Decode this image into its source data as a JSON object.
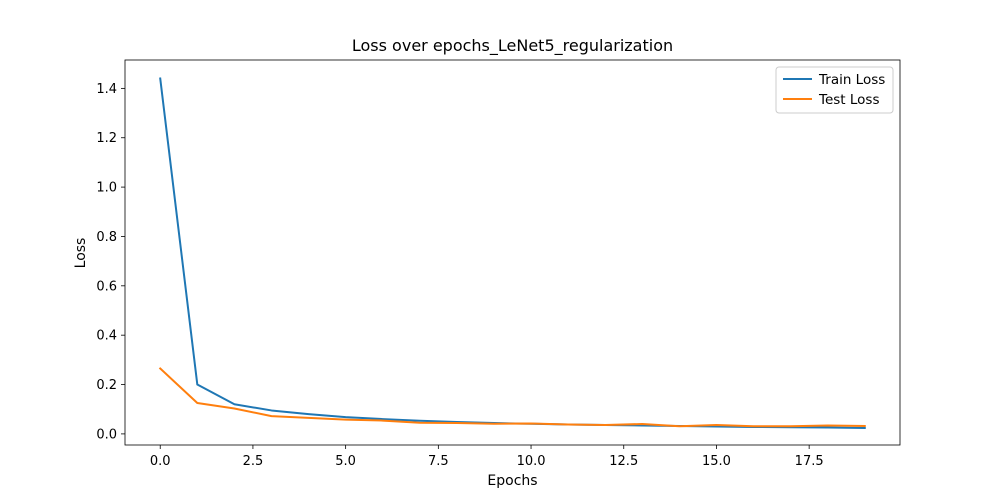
{
  "chart_data": {
    "type": "line",
    "title": "Loss over epochs_LeNet5_regularization",
    "xlabel": "Epochs",
    "ylabel": "Loss",
    "xlim": [
      -0.95,
      19.95
    ],
    "ylim": [
      -0.045,
      1.515
    ],
    "x_ticks": [
      0.0,
      2.5,
      5.0,
      7.5,
      10.0,
      12.5,
      15.0,
      17.5
    ],
    "x_tick_labels": [
      "0.0",
      "2.5",
      "5.0",
      "7.5",
      "10.0",
      "12.5",
      "15.0",
      "17.5"
    ],
    "y_ticks": [
      0.0,
      0.2,
      0.4,
      0.6,
      0.8,
      1.0,
      1.2,
      1.4
    ],
    "y_tick_labels": [
      "0.0",
      "0.2",
      "0.4",
      "0.6",
      "0.8",
      "1.0",
      "1.2",
      "1.4"
    ],
    "grid": false,
    "legend_position": "top-right",
    "x": [
      0,
      1,
      2,
      3,
      4,
      5,
      6,
      7,
      8,
      9,
      10,
      11,
      12,
      13,
      14,
      15,
      16,
      17,
      18,
      19
    ],
    "series": [
      {
        "name": "Train Loss",
        "color": "#1f77b4",
        "values": [
          1.44,
          0.2,
          0.12,
          0.095,
          0.08,
          0.068,
          0.06,
          0.053,
          0.048,
          0.044,
          0.041,
          0.038,
          0.036,
          0.034,
          0.032,
          0.03,
          0.028,
          0.027,
          0.026,
          0.024
        ]
      },
      {
        "name": "Test Loss",
        "color": "#ff7f0e",
        "values": [
          0.265,
          0.125,
          0.103,
          0.072,
          0.065,
          0.058,
          0.054,
          0.045,
          0.044,
          0.041,
          0.042,
          0.038,
          0.036,
          0.04,
          0.031,
          0.036,
          0.031,
          0.031,
          0.034,
          0.032
        ]
      }
    ]
  }
}
